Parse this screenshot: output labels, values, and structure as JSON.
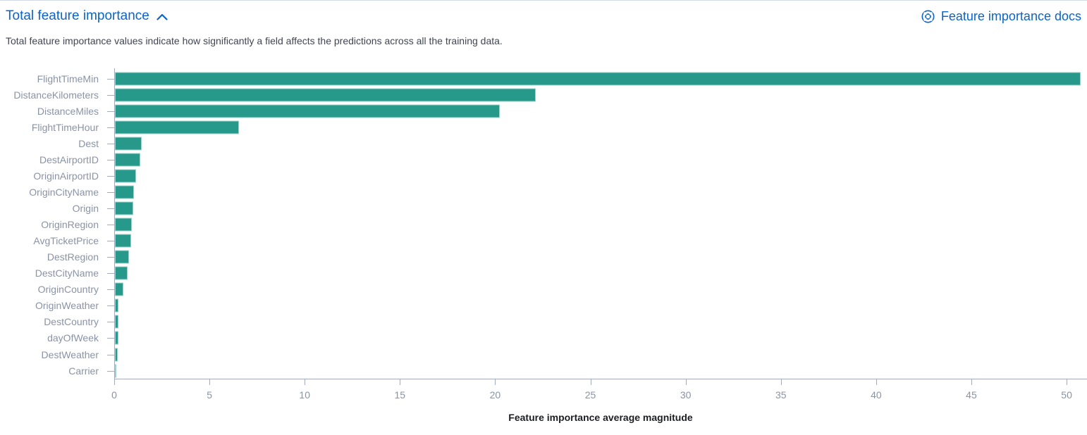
{
  "header": {
    "title": "Total feature importance",
    "collapse_icon": "chevron-up",
    "docs_link_label": "Feature importance docs",
    "docs_icon": "documentation-lifebuoy",
    "description": "Total feature importance values indicate how significantly a field affects the predictions across all the training data."
  },
  "colors": {
    "accent": "#0b64c8",
    "bar": "#26998b",
    "text": "#404552",
    "axis_label": "#8a93a6",
    "axis_line": "#a3abbc",
    "axis_title": "#1d1e24",
    "border": "#d3dae6"
  },
  "chart_data": {
    "type": "bar",
    "orientation": "horizontal",
    "title": "Total feature importance",
    "categories": [
      "FlightTimeMin",
      "DistanceKilometers",
      "DistanceMiles",
      "FlightTimeHour",
      "Dest",
      "DestAirportID",
      "OriginAirportID",
      "OriginCityName",
      "Origin",
      "OriginRegion",
      "AvgTicketPrice",
      "DestRegion",
      "DestCityName",
      "OriginCountry",
      "OriginWeather",
      "DestCountry",
      "dayOfWeek",
      "DestWeather",
      "Carrier"
    ],
    "values": [
      50.7,
      22.1,
      20.2,
      6.5,
      1.4,
      1.35,
      1.1,
      1.0,
      0.97,
      0.88,
      0.85,
      0.75,
      0.65,
      0.45,
      0.2,
      0.19,
      0.18,
      0.15,
      0.07
    ],
    "xlabel": "Feature importance average magnitude",
    "ylabel": "",
    "xticks": [
      0,
      5,
      10,
      15,
      20,
      25,
      30,
      35,
      40,
      45,
      50
    ],
    "xlim": [
      0,
      51.07
    ],
    "grid": false,
    "legend": "none"
  }
}
